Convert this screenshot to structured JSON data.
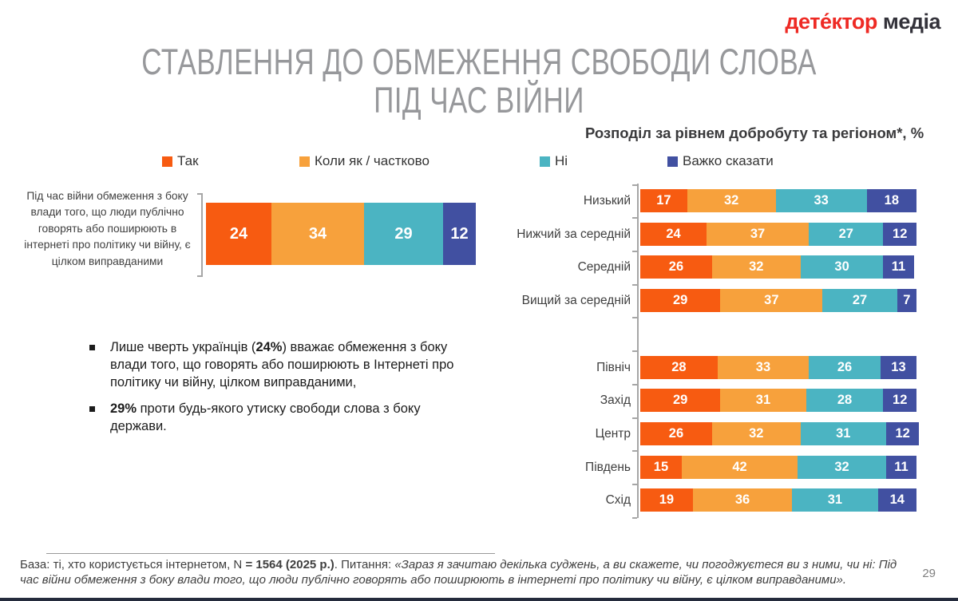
{
  "logo": {
    "part1": "дете́ктор",
    "part2": "медіа"
  },
  "title": {
    "line1": "СТАВЛЕННЯ ДО ОБМЕЖЕННЯ СВОБОДИ СЛОВА",
    "line2": "ПІД ЧАС ВІЙНИ"
  },
  "colors": {
    "series": [
      "#f75b11",
      "#f7a13c",
      "#4bb4c2",
      "#4150a1"
    ],
    "logo_red": "#ee2a24",
    "title_gray": "#97989b"
  },
  "legend": {
    "items": [
      {
        "label": "Так",
        "color": "#f75b11"
      },
      {
        "label": "Коли як / частково",
        "color": "#f7a13c"
      },
      {
        "label": "Ні",
        "color": "#4bb4c2"
      },
      {
        "label": "Важко сказати",
        "color": "#4150a1"
      }
    ]
  },
  "chart_data": [
    {
      "type": "bar",
      "stacked": true,
      "orientation": "horizontal",
      "statement": "Під час війни обмеження з боку влади того, що люди публічно говорять або поширюють в інтернеті про політику чи війну, є цілком виправданими",
      "series_names": [
        "Так",
        "Коли як / частково",
        "Ні",
        "Важко сказати"
      ],
      "values": [
        24,
        34,
        29,
        12
      ],
      "xlim": [
        0,
        100
      ],
      "legend_position": "top"
    },
    {
      "type": "bar",
      "stacked": true,
      "orientation": "horizontal",
      "title": "Розподіл за рівнем добробуту та регіоном*, %",
      "series_names": [
        "Так",
        "Коли як / частково",
        "Ні",
        "Важко сказати"
      ],
      "groups": [
        {
          "group_name": "рівень добробуту",
          "categories": [
            "Низький",
            "Нижчий за середній",
            "Середній",
            "Вищий за середній"
          ],
          "rows": [
            [
              17,
              32,
              33,
              18
            ],
            [
              24,
              37,
              27,
              12
            ],
            [
              26,
              32,
              30,
              11
            ],
            [
              29,
              37,
              27,
              7
            ]
          ]
        },
        {
          "group_name": "регіон",
          "categories": [
            "Північ",
            "Захід",
            "Центр",
            "Південь",
            "Схід"
          ],
          "rows": [
            [
              28,
              33,
              26,
              13
            ],
            [
              29,
              31,
              28,
              12
            ],
            [
              26,
              32,
              31,
              12
            ],
            [
              15,
              42,
              32,
              11
            ],
            [
              19,
              36,
              31,
              14
            ]
          ]
        }
      ],
      "xlim": [
        0,
        100
      ],
      "grid": false
    }
  ],
  "bullets": [
    {
      "pre": "Лише чверть українців (",
      "bold": "24%",
      "post": ") вважає обмеження з боку влади того, що говорять або поширюють в Інтернеті про політику чи війну, цілком виправданими,"
    },
    {
      "pre": "",
      "bold": "29%",
      "post": " проти будь-якого утиску свободи слова з боку держави."
    }
  ],
  "footer": {
    "base_regular": "База: ті, хто користується інтернетом, N ",
    "base_bold": "= 1564 (2025 р.)",
    "question_label": ". Питання: ",
    "question_italic": "«Зараз я зачитаю декілька суджень, а ви скажете, чи погоджуєтеся ви з ними, чи ні: Під час війни обмеження з боку влади того, що люди публічно говорять або поширюють в інтернеті про політику чи війну, є цілком виправданими».",
    "page_number": "29"
  }
}
